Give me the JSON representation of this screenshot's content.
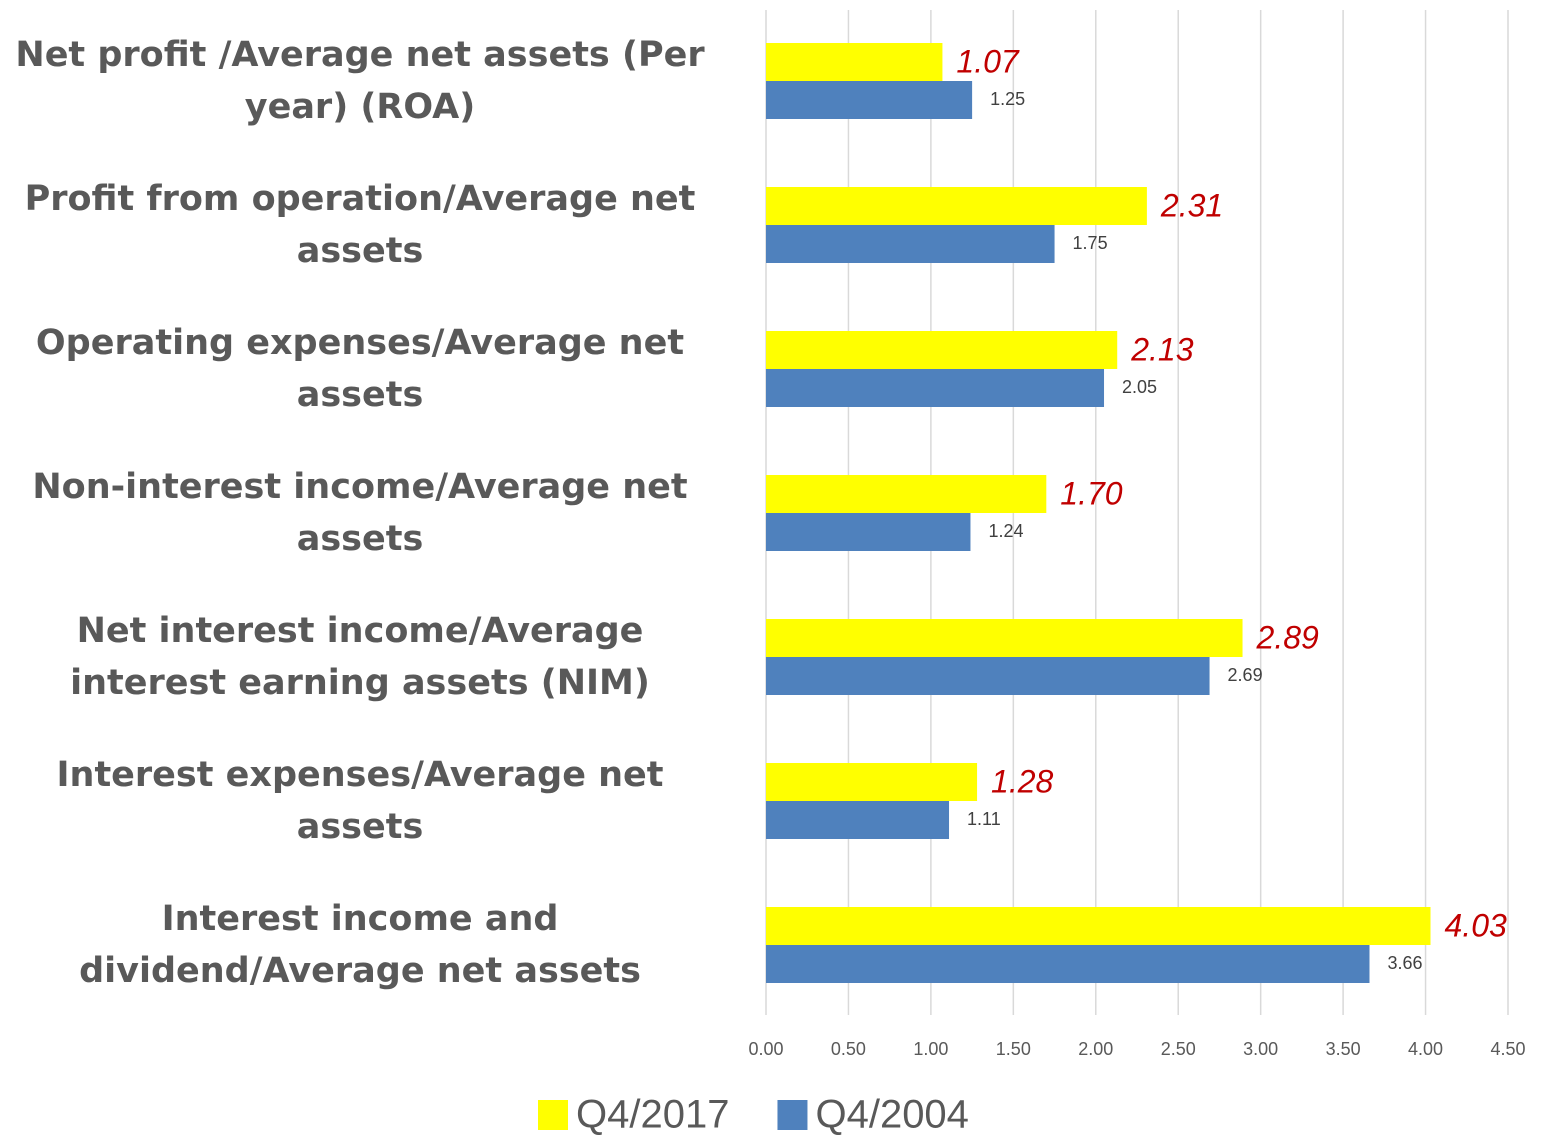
{
  "chart_data": {
    "type": "hbar",
    "categories": [
      "Net profit /Average net assets (Per year) (ROA)",
      "Profit from operation/Average net assets",
      "Operating expenses/Average net assets",
      "Non-interest income/Average net assets",
      "Net interest income/Average interest earning assets (NIM)",
      "Interest expenses/Average net assets",
      "Interest income and dividend/Average net assets"
    ],
    "series": [
      {
        "name": "Q4/2017",
        "color": "#ffff00",
        "values": [
          1.07,
          2.31,
          2.13,
          1.7,
          2.89,
          1.28,
          4.03
        ],
        "value_labels": [
          "1.07",
          "2.31",
          "2.13",
          "1.70",
          "2.89",
          "1.28",
          "4.03"
        ]
      },
      {
        "name": "Q4/2004",
        "color": "#4f81bd",
        "values": [
          1.25,
          1.75,
          2.05,
          1.24,
          2.69,
          1.11,
          3.66
        ],
        "value_labels": [
          "1.25",
          "1.75",
          "2.05",
          "1.24",
          "2.69",
          "1.11",
          "3.66"
        ]
      }
    ],
    "xlim": [
      0,
      4.5
    ],
    "xticks": [
      {
        "value": 0,
        "label": "0.00"
      },
      {
        "value": 0.5,
        "label": "0.50"
      },
      {
        "value": 1,
        "label": "1.00"
      },
      {
        "value": 1.5,
        "label": "1.50"
      },
      {
        "value": 2,
        "label": "2.00"
      },
      {
        "value": 2.5,
        "label": "2.50"
      },
      {
        "value": 3,
        "label": "3.00"
      },
      {
        "value": 3.5,
        "label": "3.50"
      },
      {
        "value": 4,
        "label": "4.00"
      },
      {
        "value": 4.5,
        "label": "4.50"
      }
    ],
    "grid": true,
    "legend": "bottom"
  }
}
